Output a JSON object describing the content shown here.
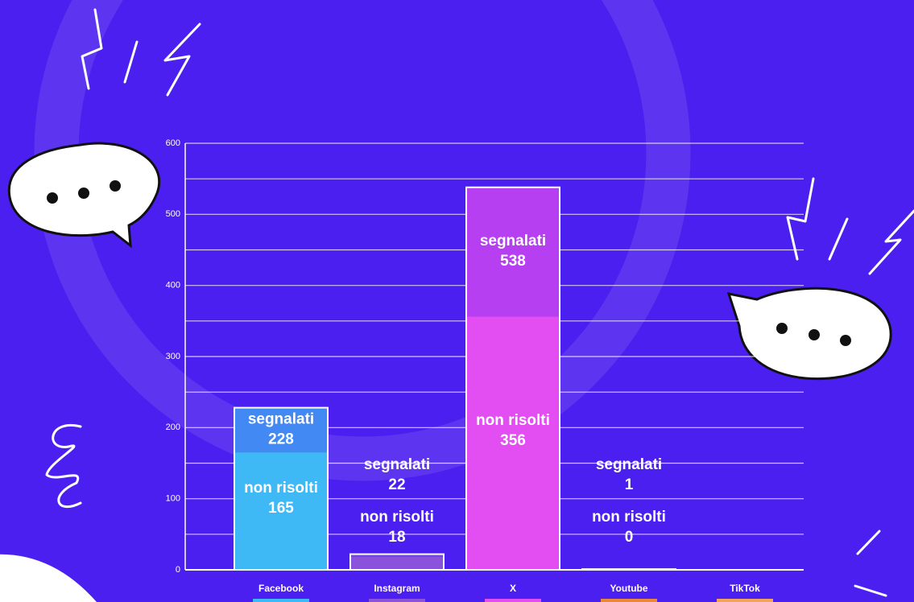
{
  "chart_data": {
    "type": "bar",
    "categories": [
      "Facebook",
      "Instagram",
      "X",
      "Youtube",
      "TikTok"
    ],
    "colors": [
      "#3fb8f6",
      "#8b52dc",
      "#e24ef2",
      "#e9873a",
      "#f2a45c"
    ],
    "series": [
      {
        "name": "segnalati",
        "values": [
          228,
          22,
          538,
          1,
          null
        ]
      },
      {
        "name": "non risolti",
        "values": [
          165,
          18,
          356,
          0,
          null
        ]
      }
    ],
    "ylim": [
      0,
      600
    ],
    "yticks": [
      0,
      100,
      200,
      300,
      400,
      500,
      600
    ],
    "grid": true,
    "minor_grid": true
  }
}
